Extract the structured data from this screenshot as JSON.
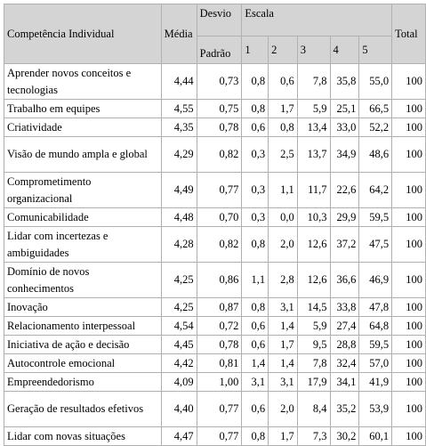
{
  "header": {
    "competencia": "Competência Individual",
    "media": "Média",
    "desvio": "Desvio",
    "padrao": "Padrão",
    "escala": "Escala",
    "scale": [
      "1",
      "2",
      "3",
      "4",
      "5"
    ],
    "total": "Total"
  },
  "table": {
    "rows": [
      [
        "Aprender novos conceitos e tecnologias",
        "4,44",
        "0,73",
        "0,8",
        "0,6",
        "7,8",
        "35,8",
        "55,0",
        "100"
      ],
      [
        "Trabalho em equipes",
        "4,55",
        "0,75",
        "0,8",
        "1,7",
        "5,9",
        "25,1",
        "66,5",
        "100"
      ],
      [
        "Criatividade",
        "4,35",
        "0,78",
        "0,6",
        "0,8",
        "13,4",
        "33,0",
        "52,2",
        "100"
      ],
      [
        "Visão de mundo ampla e global",
        "4,29",
        "0,82",
        "0,3",
        "2,5",
        "13,7",
        "34,9",
        "48,6",
        "100"
      ],
      [
        "Comprometimento organizacional",
        "4,49",
        "0,77",
        "0,3",
        "1,1",
        "11,7",
        "22,6",
        "64,2",
        "100"
      ],
      [
        "Comunicabilidade",
        "4,48",
        "0,70",
        "0,3",
        "0,0",
        "10,3",
        "29,9",
        "59,5",
        "100"
      ],
      [
        "Lidar com incertezas e ambiguidades",
        "4,28",
        "0,82",
        "0,8",
        "2,0",
        "12,6",
        "37,2",
        "47,5",
        "100"
      ],
      [
        "Domínio de novos conhecimentos",
        "4,25",
        "0,86",
        "1,1",
        "2,8",
        "12,6",
        "36,6",
        "46,9",
        "100"
      ],
      [
        "Inovação",
        "4,25",
        "0,87",
        "0,8",
        "3,1",
        "14,5",
        "33,8",
        "47,8",
        "100"
      ],
      [
        "Relacionamento interpessoal",
        "4,54",
        "0,72",
        "0,6",
        "1,4",
        "5,9",
        "27,4",
        "64,8",
        "100"
      ],
      [
        "Iniciativa de ação e decisão",
        "4,45",
        "0,78",
        "0,6",
        "1,7",
        "9,5",
        "28,8",
        "59,5",
        "100"
      ],
      [
        "Autocontrole emocional",
        "4,42",
        "0,81",
        "1,4",
        "1,4",
        "7,8",
        "32,4",
        "57,0",
        "100"
      ],
      [
        "Empreendedorismo",
        "4,09",
        "1,00",
        "3,1",
        "3,1",
        "17,9",
        "34,1",
        "41,9",
        "100"
      ],
      [
        "Geração de resultados efetivos",
        "4,40",
        "0,77",
        "0,6",
        "2,0",
        "8,4",
        "35,2",
        "53,9",
        "100"
      ],
      [
        "Lidar com novas situações",
        "4,47",
        "0,77",
        "0,8",
        "1,7",
        "7,3",
        "30,2",
        "60,1",
        "100"
      ]
    ]
  }
}
